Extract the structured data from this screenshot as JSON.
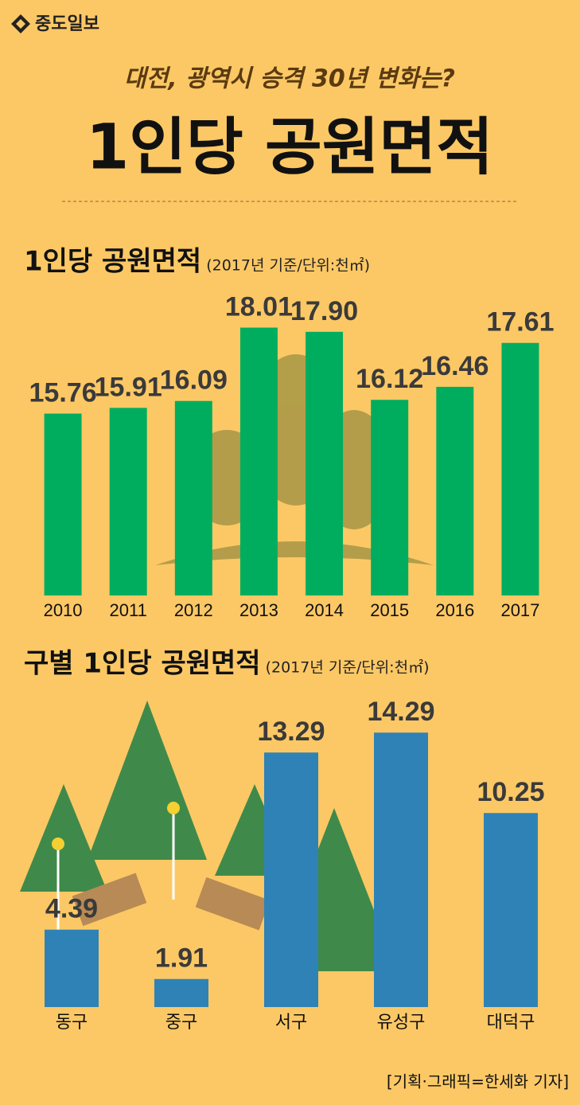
{
  "header": {
    "logo": "중도일보",
    "subtitle": "대전, 광역시 승격 30년 변화는?",
    "title": "1인당 공원면적"
  },
  "chart_data": [
    {
      "type": "bar",
      "title": "1인당 공원면적",
      "subtitle": "(2017년 기준/단위:천㎡)",
      "categories": [
        "2010",
        "2011",
        "2012",
        "2013",
        "2014",
        "2015",
        "2016",
        "2017"
      ],
      "values": [
        15.76,
        15.91,
        16.09,
        18.01,
        17.9,
        16.12,
        16.46,
        17.61
      ],
      "value_labels": [
        "15.76",
        "15.91",
        "16.09",
        "18.01",
        "17.90",
        "16.12",
        "16.46",
        "17.61"
      ],
      "color": "#00ad5f",
      "ylim": [
        11,
        18.5
      ]
    },
    {
      "type": "bar",
      "title": "구별 1인당 공원면적",
      "subtitle": "(2017년 기준/단위:천㎡)",
      "categories": [
        "동구",
        "중구",
        "서구",
        "유성구",
        "대덕구"
      ],
      "values": [
        4.39,
        1.91,
        13.29,
        14.29,
        10.25
      ],
      "color": "#2f82b6",
      "ylim": [
        0.5,
        15
      ]
    }
  ],
  "credit": "[기획·그래픽=한세화 기자]"
}
